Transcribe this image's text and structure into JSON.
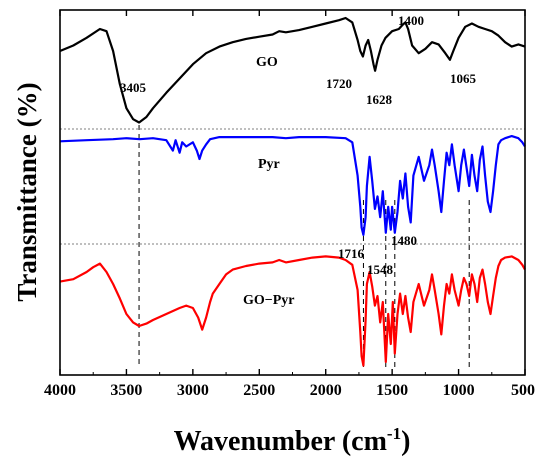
{
  "chart_data": {
    "type": "line",
    "title": "",
    "xlabel": "Wavenumber (cm",
    "xlabel_sup": "-1",
    "xlabel_end": ")",
    "ylabel": "Transmittance (%)",
    "xlim": [
      4000,
      500
    ],
    "x_reversed": true,
    "x_ticks": [
      "4000",
      "3500",
      "3000",
      "2500",
      "2000",
      "1500",
      "1000",
      "500"
    ],
    "y_ticks_shown": false,
    "legend": "none",
    "series": [
      {
        "name": "GO",
        "color": "#000000",
        "points": [
          [
            4000,
            0.3
          ],
          [
            3900,
            0.25
          ],
          [
            3800,
            0.18
          ],
          [
            3700,
            0.1
          ],
          [
            3650,
            0.12
          ],
          [
            3600,
            0.3
          ],
          [
            3550,
            0.6
          ],
          [
            3500,
            0.82
          ],
          [
            3450,
            0.92
          ],
          [
            3405,
            0.95
          ],
          [
            3350,
            0.9
          ],
          [
            3300,
            0.82
          ],
          [
            3200,
            0.68
          ],
          [
            3100,
            0.55
          ],
          [
            3000,
            0.42
          ],
          [
            2900,
            0.32
          ],
          [
            2800,
            0.26
          ],
          [
            2700,
            0.22
          ],
          [
            2600,
            0.19
          ],
          [
            2500,
            0.17
          ],
          [
            2400,
            0.15
          ],
          [
            2350,
            0.12
          ],
          [
            2300,
            0.13
          ],
          [
            2200,
            0.11
          ],
          [
            2100,
            0.08
          ],
          [
            2000,
            0.05
          ],
          [
            1900,
            0.02
          ],
          [
            1850,
            0.0
          ],
          [
            1800,
            0.04
          ],
          [
            1760,
            0.2
          ],
          [
            1740,
            0.3
          ],
          [
            1720,
            0.35
          ],
          [
            1700,
            0.25
          ],
          [
            1680,
            0.2
          ],
          [
            1660,
            0.3
          ],
          [
            1640,
            0.42
          ],
          [
            1628,
            0.48
          ],
          [
            1610,
            0.38
          ],
          [
            1580,
            0.25
          ],
          [
            1550,
            0.18
          ],
          [
            1500,
            0.12
          ],
          [
            1450,
            0.1
          ],
          [
            1420,
            0.06
          ],
          [
            1400,
            0.04
          ],
          [
            1380,
            0.1
          ],
          [
            1350,
            0.25
          ],
          [
            1300,
            0.32
          ],
          [
            1250,
            0.28
          ],
          [
            1200,
            0.22
          ],
          [
            1150,
            0.24
          ],
          [
            1100,
            0.32
          ],
          [
            1065,
            0.38
          ],
          [
            1040,
            0.3
          ],
          [
            1000,
            0.18
          ],
          [
            950,
            0.08
          ],
          [
            900,
            0.05
          ],
          [
            850,
            0.08
          ],
          [
            800,
            0.1
          ],
          [
            750,
            0.12
          ],
          [
            700,
            0.16
          ],
          [
            650,
            0.22
          ],
          [
            600,
            0.26
          ],
          [
            550,
            0.24
          ],
          [
            500,
            0.26
          ]
        ]
      },
      {
        "name": "Pyr",
        "color": "#0000ff",
        "points": [
          [
            4000,
            0.07
          ],
          [
            3800,
            0.06
          ],
          [
            3600,
            0.05
          ],
          [
            3500,
            0.04
          ],
          [
            3400,
            0.05
          ],
          [
            3300,
            0.04
          ],
          [
            3200,
            0.06
          ],
          [
            3150,
            0.16
          ],
          [
            3130,
            0.06
          ],
          [
            3100,
            0.18
          ],
          [
            3080,
            0.08
          ],
          [
            3050,
            0.12
          ],
          [
            3000,
            0.08
          ],
          [
            2970,
            0.16
          ],
          [
            2950,
            0.24
          ],
          [
            2930,
            0.16
          ],
          [
            2900,
            0.1
          ],
          [
            2870,
            0.05
          ],
          [
            2800,
            0.03
          ],
          [
            2600,
            0.03
          ],
          [
            2400,
            0.03
          ],
          [
            2300,
            0.04
          ],
          [
            2200,
            0.03
          ],
          [
            2000,
            0.03
          ],
          [
            1850,
            0.04
          ],
          [
            1800,
            0.08
          ],
          [
            1760,
            0.4
          ],
          [
            1740,
            0.7
          ],
          [
            1730,
            0.9
          ],
          [
            1716,
            0.97
          ],
          [
            1700,
            0.8
          ],
          [
            1690,
            0.5
          ],
          [
            1670,
            0.22
          ],
          [
            1650,
            0.45
          ],
          [
            1630,
            0.72
          ],
          [
            1610,
            0.6
          ],
          [
            1590,
            0.8
          ],
          [
            1570,
            0.55
          ],
          [
            1548,
            0.95
          ],
          [
            1530,
            0.7
          ],
          [
            1510,
            0.92
          ],
          [
            1500,
            0.7
          ],
          [
            1480,
            0.95
          ],
          [
            1460,
            0.75
          ],
          [
            1440,
            0.45
          ],
          [
            1420,
            0.62
          ],
          [
            1400,
            0.38
          ],
          [
            1380,
            0.7
          ],
          [
            1360,
            0.85
          ],
          [
            1340,
            0.4
          ],
          [
            1300,
            0.22
          ],
          [
            1260,
            0.45
          ],
          [
            1220,
            0.3
          ],
          [
            1200,
            0.15
          ],
          [
            1180,
            0.3
          ],
          [
            1150,
            0.55
          ],
          [
            1130,
            0.75
          ],
          [
            1110,
            0.45
          ],
          [
            1090,
            0.18
          ],
          [
            1070,
            0.3
          ],
          [
            1050,
            0.1
          ],
          [
            1030,
            0.3
          ],
          [
            1000,
            0.55
          ],
          [
            980,
            0.3
          ],
          [
            960,
            0.15
          ],
          [
            940,
            0.32
          ],
          [
            920,
            0.5
          ],
          [
            900,
            0.2
          ],
          [
            880,
            0.4
          ],
          [
            860,
            0.55
          ],
          [
            840,
            0.25
          ],
          [
            820,
            0.12
          ],
          [
            800,
            0.4
          ],
          [
            780,
            0.65
          ],
          [
            760,
            0.75
          ],
          [
            740,
            0.55
          ],
          [
            720,
            0.3
          ],
          [
            700,
            0.1
          ],
          [
            680,
            0.06
          ],
          [
            650,
            0.04
          ],
          [
            600,
            0.02
          ],
          [
            550,
            0.04
          ],
          [
            520,
            0.08
          ],
          [
            500,
            0.12
          ]
        ]
      },
      {
        "name": "GO−Pyr",
        "color": "#ff0000",
        "points": [
          [
            4000,
            0.28
          ],
          [
            3900,
            0.26
          ],
          [
            3800,
            0.2
          ],
          [
            3750,
            0.16
          ],
          [
            3700,
            0.13
          ],
          [
            3650,
            0.2
          ],
          [
            3600,
            0.3
          ],
          [
            3550,
            0.42
          ],
          [
            3500,
            0.55
          ],
          [
            3450,
            0.62
          ],
          [
            3405,
            0.65
          ],
          [
            3350,
            0.63
          ],
          [
            3300,
            0.6
          ],
          [
            3200,
            0.55
          ],
          [
            3100,
            0.5
          ],
          [
            3050,
            0.48
          ],
          [
            3000,
            0.5
          ],
          [
            2960,
            0.58
          ],
          [
            2930,
            0.68
          ],
          [
            2900,
            0.58
          ],
          [
            2870,
            0.45
          ],
          [
            2850,
            0.38
          ],
          [
            2800,
            0.3
          ],
          [
            2750,
            0.22
          ],
          [
            2700,
            0.18
          ],
          [
            2600,
            0.15
          ],
          [
            2500,
            0.13
          ],
          [
            2400,
            0.12
          ],
          [
            2350,
            0.1
          ],
          [
            2300,
            0.12
          ],
          [
            2200,
            0.1
          ],
          [
            2100,
            0.08
          ],
          [
            2000,
            0.07
          ],
          [
            1900,
            0.08
          ],
          [
            1850,
            0.1
          ],
          [
            1800,
            0.14
          ],
          [
            1760,
            0.35
          ],
          [
            1740,
            0.7
          ],
          [
            1730,
            0.9
          ],
          [
            1716,
            0.98
          ],
          [
            1700,
            0.6
          ],
          [
            1690,
            0.3
          ],
          [
            1670,
            0.2
          ],
          [
            1650,
            0.32
          ],
          [
            1630,
            0.48
          ],
          [
            1610,
            0.4
          ],
          [
            1590,
            0.62
          ],
          [
            1570,
            0.45
          ],
          [
            1548,
            0.95
          ],
          [
            1530,
            0.55
          ],
          [
            1510,
            0.8
          ],
          [
            1495,
            0.45
          ],
          [
            1480,
            0.88
          ],
          [
            1460,
            0.55
          ],
          [
            1440,
            0.38
          ],
          [
            1420,
            0.55
          ],
          [
            1400,
            0.4
          ],
          [
            1380,
            0.58
          ],
          [
            1360,
            0.7
          ],
          [
            1340,
            0.45
          ],
          [
            1300,
            0.3
          ],
          [
            1260,
            0.48
          ],
          [
            1220,
            0.35
          ],
          [
            1200,
            0.22
          ],
          [
            1180,
            0.35
          ],
          [
            1150,
            0.55
          ],
          [
            1130,
            0.72
          ],
          [
            1110,
            0.48
          ],
          [
            1090,
            0.3
          ],
          [
            1070,
            0.38
          ],
          [
            1050,
            0.22
          ],
          [
            1030,
            0.35
          ],
          [
            1000,
            0.48
          ],
          [
            980,
            0.35
          ],
          [
            960,
            0.25
          ],
          [
            940,
            0.3
          ],
          [
            920,
            0.4
          ],
          [
            900,
            0.22
          ],
          [
            880,
            0.3
          ],
          [
            860,
            0.45
          ],
          [
            840,
            0.25
          ],
          [
            820,
            0.18
          ],
          [
            800,
            0.3
          ],
          [
            780,
            0.45
          ],
          [
            760,
            0.55
          ],
          [
            740,
            0.4
          ],
          [
            720,
            0.25
          ],
          [
            700,
            0.15
          ],
          [
            680,
            0.1
          ],
          [
            650,
            0.08
          ],
          [
            600,
            0.07
          ],
          [
            550,
            0.1
          ],
          [
            520,
            0.14
          ],
          [
            500,
            0.18
          ]
        ]
      }
    ],
    "annotations": [
      "3405",
      "1720",
      "1628",
      "1400",
      "1065",
      "1716",
      "1480",
      "1548"
    ],
    "reference_lines_x": [
      3405,
      1716,
      1548,
      1480,
      920
    ]
  }
}
